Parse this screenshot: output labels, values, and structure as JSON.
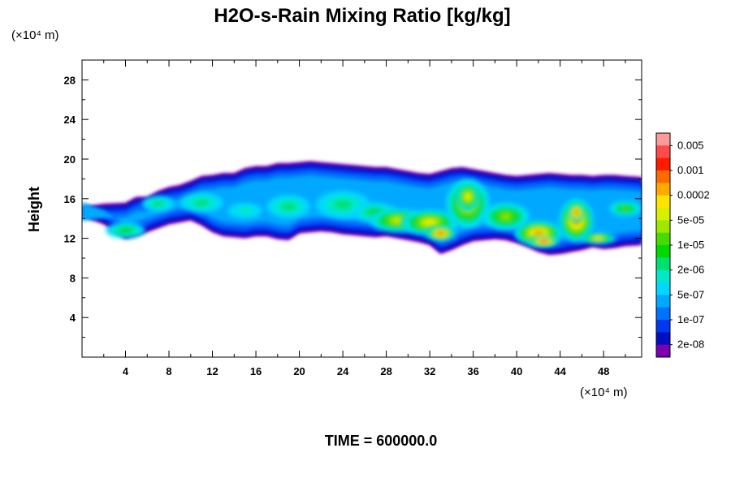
{
  "chart_data": {
    "type": "heatmap",
    "title": "H2O-s-Rain Mixing Ratio [kg/kg]",
    "xlabel": "",
    "ylabel": "Height",
    "x_unit_label": "(×10⁴ m)",
    "y_unit_label": "(×10⁴ m)",
    "footer": "TIME = 600000.0",
    "xlim": [
      0,
      51.5
    ],
    "ylim": [
      0,
      30
    ],
    "x_ticks": [
      4,
      8,
      12,
      16,
      20,
      24,
      28,
      32,
      36,
      40,
      44,
      48
    ],
    "y_ticks": [
      4,
      8,
      12,
      16,
      20,
      24,
      28
    ],
    "colorbar": {
      "labels": [
        "0.005",
        "0.001",
        "0.0002",
        "5e-05",
        "1e-05",
        "2e-06",
        "5e-07",
        "1e-07",
        "2e-08"
      ],
      "colors": [
        "#ff9a9a",
        "#ff4a4a",
        "#ff1a00",
        "#ff6a00",
        "#ffa800",
        "#ffe400",
        "#d8f000",
        "#9ee800",
        "#46dc00",
        "#00d800",
        "#00e070",
        "#00e8c8",
        "#00d8ff",
        "#00a8ff",
        "#0070ff",
        "#0038f0",
        "#0010c0",
        "#7a00b0"
      ]
    },
    "top_profile": {
      "x": [
        0,
        2,
        4,
        5,
        6,
        7,
        8,
        9,
        10,
        11,
        12,
        13,
        14,
        15,
        16,
        17,
        18,
        19,
        20,
        21,
        22,
        23,
        24,
        25,
        26,
        27,
        28,
        29,
        30,
        31,
        32,
        33,
        34,
        35,
        36,
        37,
        38,
        39,
        40,
        41,
        42,
        43,
        44,
        45,
        46,
        47,
        48,
        49,
        50,
        51.5
      ],
      "y": [
        15.2,
        15.5,
        15.6,
        16.2,
        16.2,
        16.8,
        17.2,
        17.4,
        17.8,
        18.3,
        18.4,
        18.6,
        18.6,
        19.1,
        19.3,
        19.3,
        19.6,
        19.6,
        19.7,
        19.8,
        19.7,
        19.6,
        19.5,
        19.4,
        19.3,
        19.2,
        19.2,
        19.0,
        18.8,
        18.6,
        18.5,
        18.8,
        19.1,
        19.2,
        19.0,
        18.8,
        18.6,
        18.4,
        18.3,
        18.4,
        18.5,
        18.6,
        18.5,
        18.4,
        18.4,
        18.3,
        18.4,
        18.4,
        18.3,
        18.2
      ]
    },
    "bottom_profile": {
      "x": [
        0,
        2,
        4,
        5,
        6,
        7,
        8,
        9,
        10,
        11,
        12,
        13,
        14,
        15,
        16,
        17,
        18,
        19,
        20,
        21,
        22,
        23,
        24,
        25,
        26,
        27,
        28,
        29,
        30,
        31,
        32,
        33,
        34,
        35,
        36,
        37,
        38,
        39,
        40,
        41,
        42,
        43,
        44,
        45,
        46,
        47,
        48,
        49,
        50,
        51.5
      ],
      "y": [
        14.2,
        13.4,
        11.9,
        12.2,
        12.6,
        13.0,
        13.4,
        13.6,
        13.8,
        13.3,
        12.6,
        12.2,
        12.1,
        12.0,
        12.2,
        12.2,
        11.9,
        11.8,
        12.5,
        12.6,
        12.7,
        12.6,
        12.4,
        12.3,
        12.2,
        12.1,
        12.2,
        12.0,
        11.8,
        11.6,
        11.3,
        10.4,
        10.8,
        11.3,
        11.7,
        11.8,
        11.9,
        11.8,
        11.5,
        11.1,
        10.6,
        10.3,
        10.4,
        10.6,
        10.8,
        11.1,
        10.9,
        11.0,
        11.2,
        11.3
      ]
    },
    "cores": [
      {
        "x": 4,
        "y": 12.8,
        "rx": 1.8,
        "ry": 0.8,
        "level": 9
      },
      {
        "x": 7,
        "y": 15.5,
        "rx": 1.5,
        "ry": 0.8,
        "level": 10
      },
      {
        "x": 11,
        "y": 15.6,
        "rx": 2.0,
        "ry": 1.0,
        "level": 10
      },
      {
        "x": 15,
        "y": 14.8,
        "rx": 1.6,
        "ry": 0.8,
        "level": 11
      },
      {
        "x": 19,
        "y": 15.2,
        "rx": 2.0,
        "ry": 1.2,
        "level": 10
      },
      {
        "x": 24,
        "y": 15.4,
        "rx": 2.5,
        "ry": 1.4,
        "level": 10
      },
      {
        "x": 27,
        "y": 14.6,
        "rx": 2.0,
        "ry": 1.0,
        "level": 9
      },
      {
        "x": 29,
        "y": 13.8,
        "rx": 2.5,
        "ry": 1.2,
        "level": 6
      },
      {
        "x": 32,
        "y": 13.6,
        "rx": 2.6,
        "ry": 1.3,
        "level": 5
      },
      {
        "x": 33,
        "y": 12.5,
        "rx": 1.4,
        "ry": 0.8,
        "level": 2
      },
      {
        "x": 35.5,
        "y": 15.5,
        "rx": 2.0,
        "ry": 2.5,
        "level": 5
      },
      {
        "x": 35.5,
        "y": 16.2,
        "rx": 1.1,
        "ry": 1.5,
        "level": 5
      },
      {
        "x": 39,
        "y": 14.2,
        "rx": 2.2,
        "ry": 1.4,
        "level": 7
      },
      {
        "x": 42,
        "y": 12.5,
        "rx": 2.2,
        "ry": 1.3,
        "level": 3
      },
      {
        "x": 42.5,
        "y": 11.7,
        "rx": 1.4,
        "ry": 0.6,
        "level": 1
      },
      {
        "x": 45.5,
        "y": 13.8,
        "rx": 1.6,
        "ry": 2.2,
        "level": 3
      },
      {
        "x": 45.5,
        "y": 14.6,
        "rx": 0.8,
        "ry": 1.0,
        "level": 2
      },
      {
        "x": 47.5,
        "y": 12.0,
        "rx": 1.6,
        "ry": 0.6,
        "level": 5
      },
      {
        "x": 50,
        "y": 15.0,
        "rx": 1.5,
        "ry": 0.8,
        "level": 8
      }
    ]
  }
}
